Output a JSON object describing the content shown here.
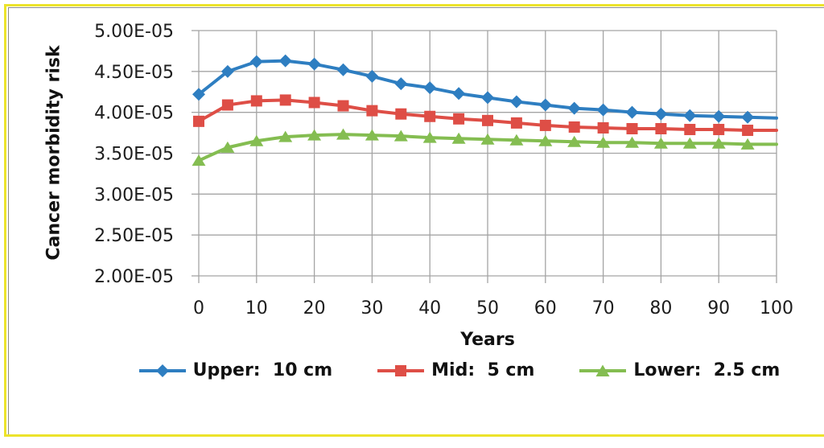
{
  "figure": {
    "background": "#FFFFFF",
    "outer_border_color": "#ECE32B",
    "inner_border_color": "#8C8C8C"
  },
  "chart_data": {
    "type": "line",
    "title": "",
    "xlabel": "Years",
    "ylabel": "Cancer morbidity risk",
    "xlim": [
      0,
      100
    ],
    "ylim": [
      2e-05,
      5e-05
    ],
    "grid": true,
    "legend_position": "bottom",
    "marker_at_last_point": false,
    "gridline_color": "#A4A4A4",
    "tick_text_color": "#1C1C1C",
    "x_tick_values": [
      0,
      10,
      20,
      30,
      40,
      50,
      60,
      70,
      80,
      90,
      100
    ],
    "x_tick_labels": [
      "0",
      "10",
      "20",
      "30",
      "40",
      "50",
      "60",
      "70",
      "80",
      "90",
      "100"
    ],
    "y_tick_values": [
      5e-05,
      4.5e-05,
      4e-05,
      3.5e-05,
      3e-05,
      2.5e-05,
      2e-05
    ],
    "y_tick_labels": [
      "5.00E-05",
      "4.50E-05",
      "4.00E-05",
      "3.50E-05",
      "3.00E-05",
      "2.50E-05",
      "2.00E-05"
    ],
    "x": [
      0,
      5,
      10,
      15,
      20,
      25,
      30,
      35,
      40,
      45,
      50,
      55,
      60,
      65,
      70,
      75,
      80,
      85,
      90,
      95,
      100
    ],
    "series": [
      {
        "name": "Upper:  10 cm",
        "color": "#2E7EC1",
        "marker": "diamond",
        "values": [
          4.22e-05,
          4.5e-05,
          4.62e-05,
          4.63e-05,
          4.59e-05,
          4.52e-05,
          4.44e-05,
          4.35e-05,
          4.3e-05,
          4.23e-05,
          4.18e-05,
          4.13e-05,
          4.09e-05,
          4.05e-05,
          4.03e-05,
          4e-05,
          3.98e-05,
          3.96e-05,
          3.95e-05,
          3.94e-05,
          3.93e-05
        ]
      },
      {
        "name": "Mid:  5 cm",
        "color": "#DE4E46",
        "marker": "square",
        "values": [
          3.89e-05,
          4.09e-05,
          4.14e-05,
          4.15e-05,
          4.12e-05,
          4.08e-05,
          4.02e-05,
          3.98e-05,
          3.95e-05,
          3.92e-05,
          3.9e-05,
          3.87e-05,
          3.84e-05,
          3.82e-05,
          3.81e-05,
          3.8e-05,
          3.8e-05,
          3.79e-05,
          3.79e-05,
          3.78e-05,
          3.78e-05
        ]
      },
      {
        "name": "Lower:  2.5 cm",
        "color": "#84BD51",
        "marker": "triangle",
        "values": [
          3.41e-05,
          3.57e-05,
          3.65e-05,
          3.7e-05,
          3.72e-05,
          3.73e-05,
          3.72e-05,
          3.71e-05,
          3.69e-05,
          3.68e-05,
          3.67e-05,
          3.66e-05,
          3.65e-05,
          3.64e-05,
          3.63e-05,
          3.63e-05,
          3.62e-05,
          3.62e-05,
          3.62e-05,
          3.61e-05,
          3.61e-05
        ]
      }
    ]
  }
}
